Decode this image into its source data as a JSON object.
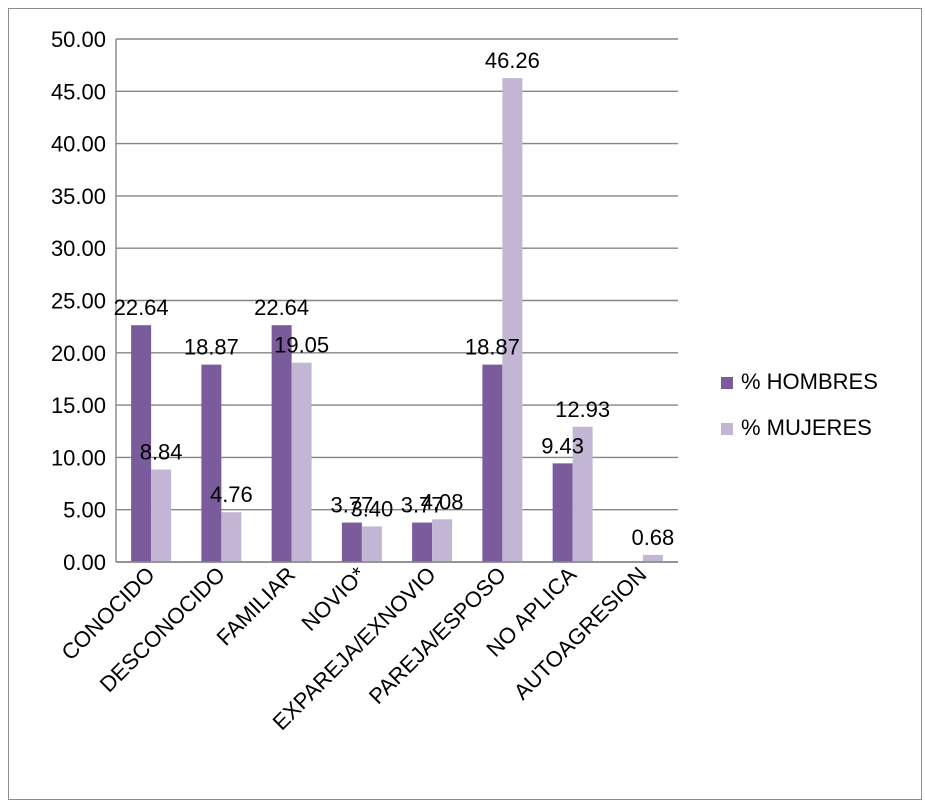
{
  "chart_data": {
    "type": "bar",
    "categories": [
      "CONOCIDO",
      "DESCONOCIDO",
      "FAMILIAR",
      "NOVIO*",
      "EXPAREJA/EXNOVIO",
      "PAREJA/ESPOSO",
      "NO APLICA",
      "AUTOAGRESION"
    ],
    "series": [
      {
        "name": "% HOMBRES",
        "color": "#7a5c9c",
        "values": [
          22.64,
          18.87,
          22.64,
          3.77,
          3.77,
          18.87,
          9.43,
          0
        ],
        "labels": [
          "22.64",
          "18.87",
          "22.64",
          "3.77",
          "3.77",
          "18.87",
          "9.43",
          null
        ]
      },
      {
        "name": "% MUJERES",
        "color": "#c2b6d4",
        "values": [
          8.84,
          4.76,
          19.05,
          3.4,
          4.08,
          46.26,
          12.93,
          0.68
        ],
        "labels": [
          "8.84",
          "4.76",
          "19.05",
          "3.40",
          "4.08",
          "46.26",
          "12.93",
          "0.68"
        ]
      }
    ],
    "yticks": [
      "0.00",
      "5.00",
      "10.00",
      "15.00",
      "20.00",
      "25.00",
      "30.00",
      "35.00",
      "40.00",
      "45.00",
      "50.00"
    ],
    "ylim": [
      0,
      50
    ],
    "grid": true,
    "legend_position": "right",
    "title": "",
    "xlabel": "",
    "ylabel": ""
  }
}
